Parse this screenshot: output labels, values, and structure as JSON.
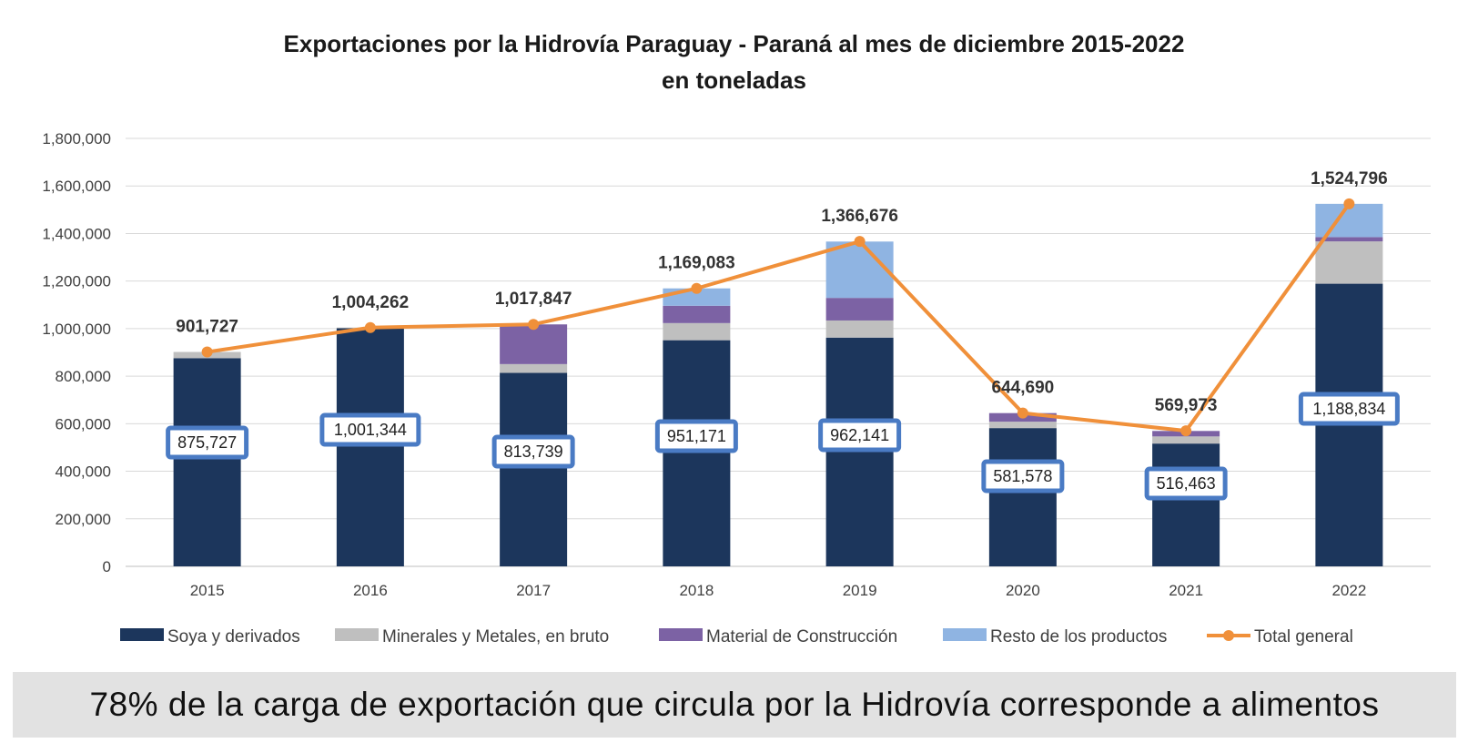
{
  "chart_data": {
    "type": "bar",
    "stacked": true,
    "title": "Exportaciones por la Hidrovía Paraguay - Paraná al mes de diciembre 2015-2022",
    "subtitle": "en toneladas",
    "categories": [
      "2015",
      "2016",
      "2017",
      "2018",
      "2019",
      "2020",
      "2021",
      "2022"
    ],
    "ylim": [
      0,
      1800000
    ],
    "yticks": [
      0,
      200000,
      400000,
      600000,
      800000,
      1000000,
      1200000,
      1400000,
      1600000,
      1800000
    ],
    "ytick_labels": [
      "0",
      "200,000",
      "400,000",
      "600,000",
      "800,000",
      "1,000,000",
      "1,200,000",
      "1,400,000",
      "1,600,000",
      "1,800,000"
    ],
    "grid": true,
    "legend_position": "bottom",
    "series": [
      {
        "name": "Soya y derivados",
        "color": "#1c365c",
        "values": [
          875727,
          1001344,
          813739,
          951171,
          962141,
          581578,
          516463,
          1188834
        ],
        "labels": [
          "875,727",
          "1,001,344",
          "813,739",
          "951,171",
          "962,141",
          "581,578",
          "516,463",
          "1,188,834"
        ]
      },
      {
        "name": "Minerales y Metales, en bruto",
        "color": "#bfbfbf",
        "values": [
          26000,
          3000,
          37000,
          72000,
          72000,
          27000,
          30000,
          178000
        ]
      },
      {
        "name": "Material de Construcción",
        "color": "#7c62a4",
        "values": [
          0,
          0,
          167000,
          73000,
          95000,
          36000,
          23000,
          18000
        ]
      },
      {
        "name": "Resto de los productos",
        "color": "#8fb4e2",
        "values": [
          0,
          0,
          0,
          73000,
          237000,
          0,
          0,
          140000
        ]
      }
    ],
    "total": {
      "name": "Total general",
      "color": "#f0903a",
      "values": [
        901727,
        1004262,
        1017847,
        1169083,
        1366676,
        644690,
        569973,
        1524796
      ],
      "labels": [
        "901,727",
        "1,004,262",
        "1,017,847",
        "1,169,083",
        "1,366,676",
        "644,690",
        "569,973",
        "1,524,796"
      ]
    },
    "highlight_color": "#4a7bc4"
  },
  "footer": {
    "text": "78% de la carga de exportación que circula por la Hidrovía corresponde a alimentos"
  }
}
